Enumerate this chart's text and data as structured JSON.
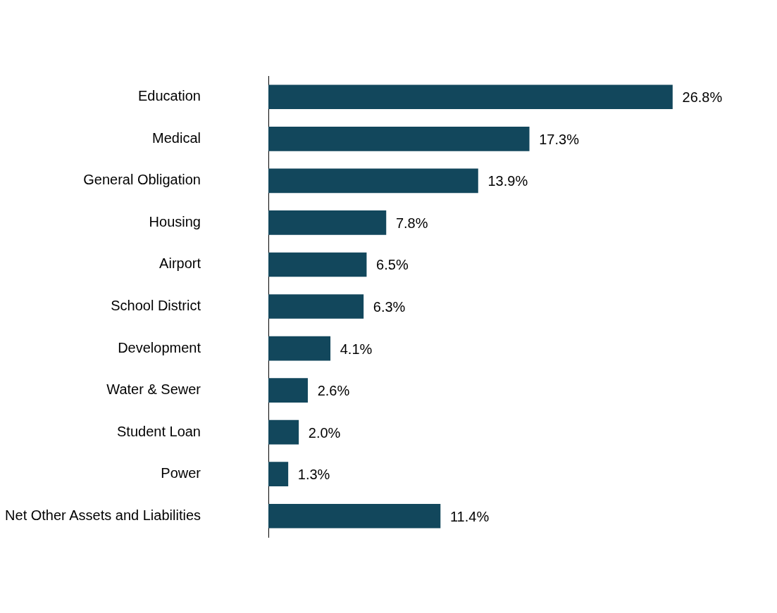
{
  "chart_data": {
    "type": "bar",
    "orientation": "horizontal",
    "categories": [
      "Education",
      "Medical",
      "General Obligation",
      "Housing",
      "Airport",
      "School District",
      "Development",
      "Water & Sewer",
      "Student Loan",
      "Power",
      "Net Other Assets and Liabilities"
    ],
    "values": [
      26.8,
      17.3,
      13.9,
      7.8,
      6.5,
      6.3,
      4.1,
      2.6,
      2.0,
      1.3,
      11.4
    ],
    "value_labels": [
      "26.8%",
      "17.3%",
      "13.9%",
      "7.8%",
      "6.5%",
      "6.3%",
      "4.1%",
      "2.6%",
      "2.0%",
      "1.3%",
      "11.4%"
    ],
    "color": "#12475c",
    "tick_labels": "y"
  }
}
